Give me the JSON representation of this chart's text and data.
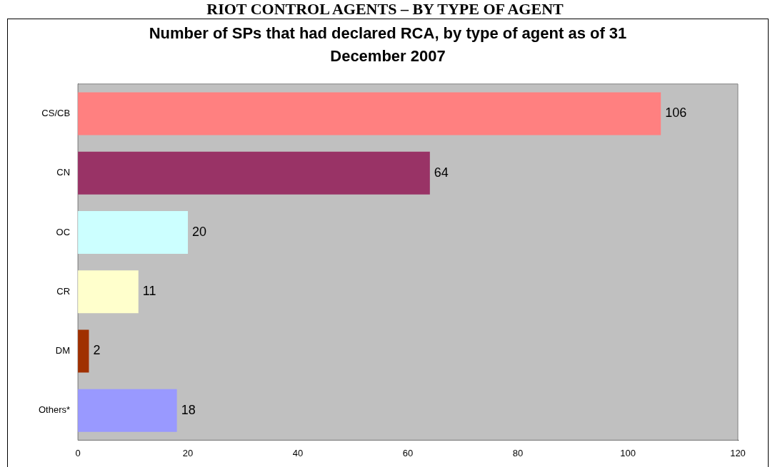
{
  "chart_data": {
    "type": "bar",
    "orientation": "horizontal",
    "title": "RIOT CONTROL AGENTS – BY TYPE OF AGENT",
    "subtitle": "Number of SPs that had declared RCA, by type of agent as of 31 December 2007",
    "categories": [
      "CS/CB",
      "CN",
      "OC",
      "CR",
      "DM",
      "Others*"
    ],
    "values": [
      106,
      64,
      20,
      11,
      2,
      18
    ],
    "colors": [
      "#ff8080",
      "#993366",
      "#ccffff",
      "#ffffcc",
      "#a03000",
      "#9999ff"
    ],
    "xlim": [
      0,
      120
    ],
    "xticks": [
      0,
      20,
      40,
      60,
      80,
      100,
      120
    ],
    "grid": false,
    "legend": false,
    "data_labels": true
  }
}
